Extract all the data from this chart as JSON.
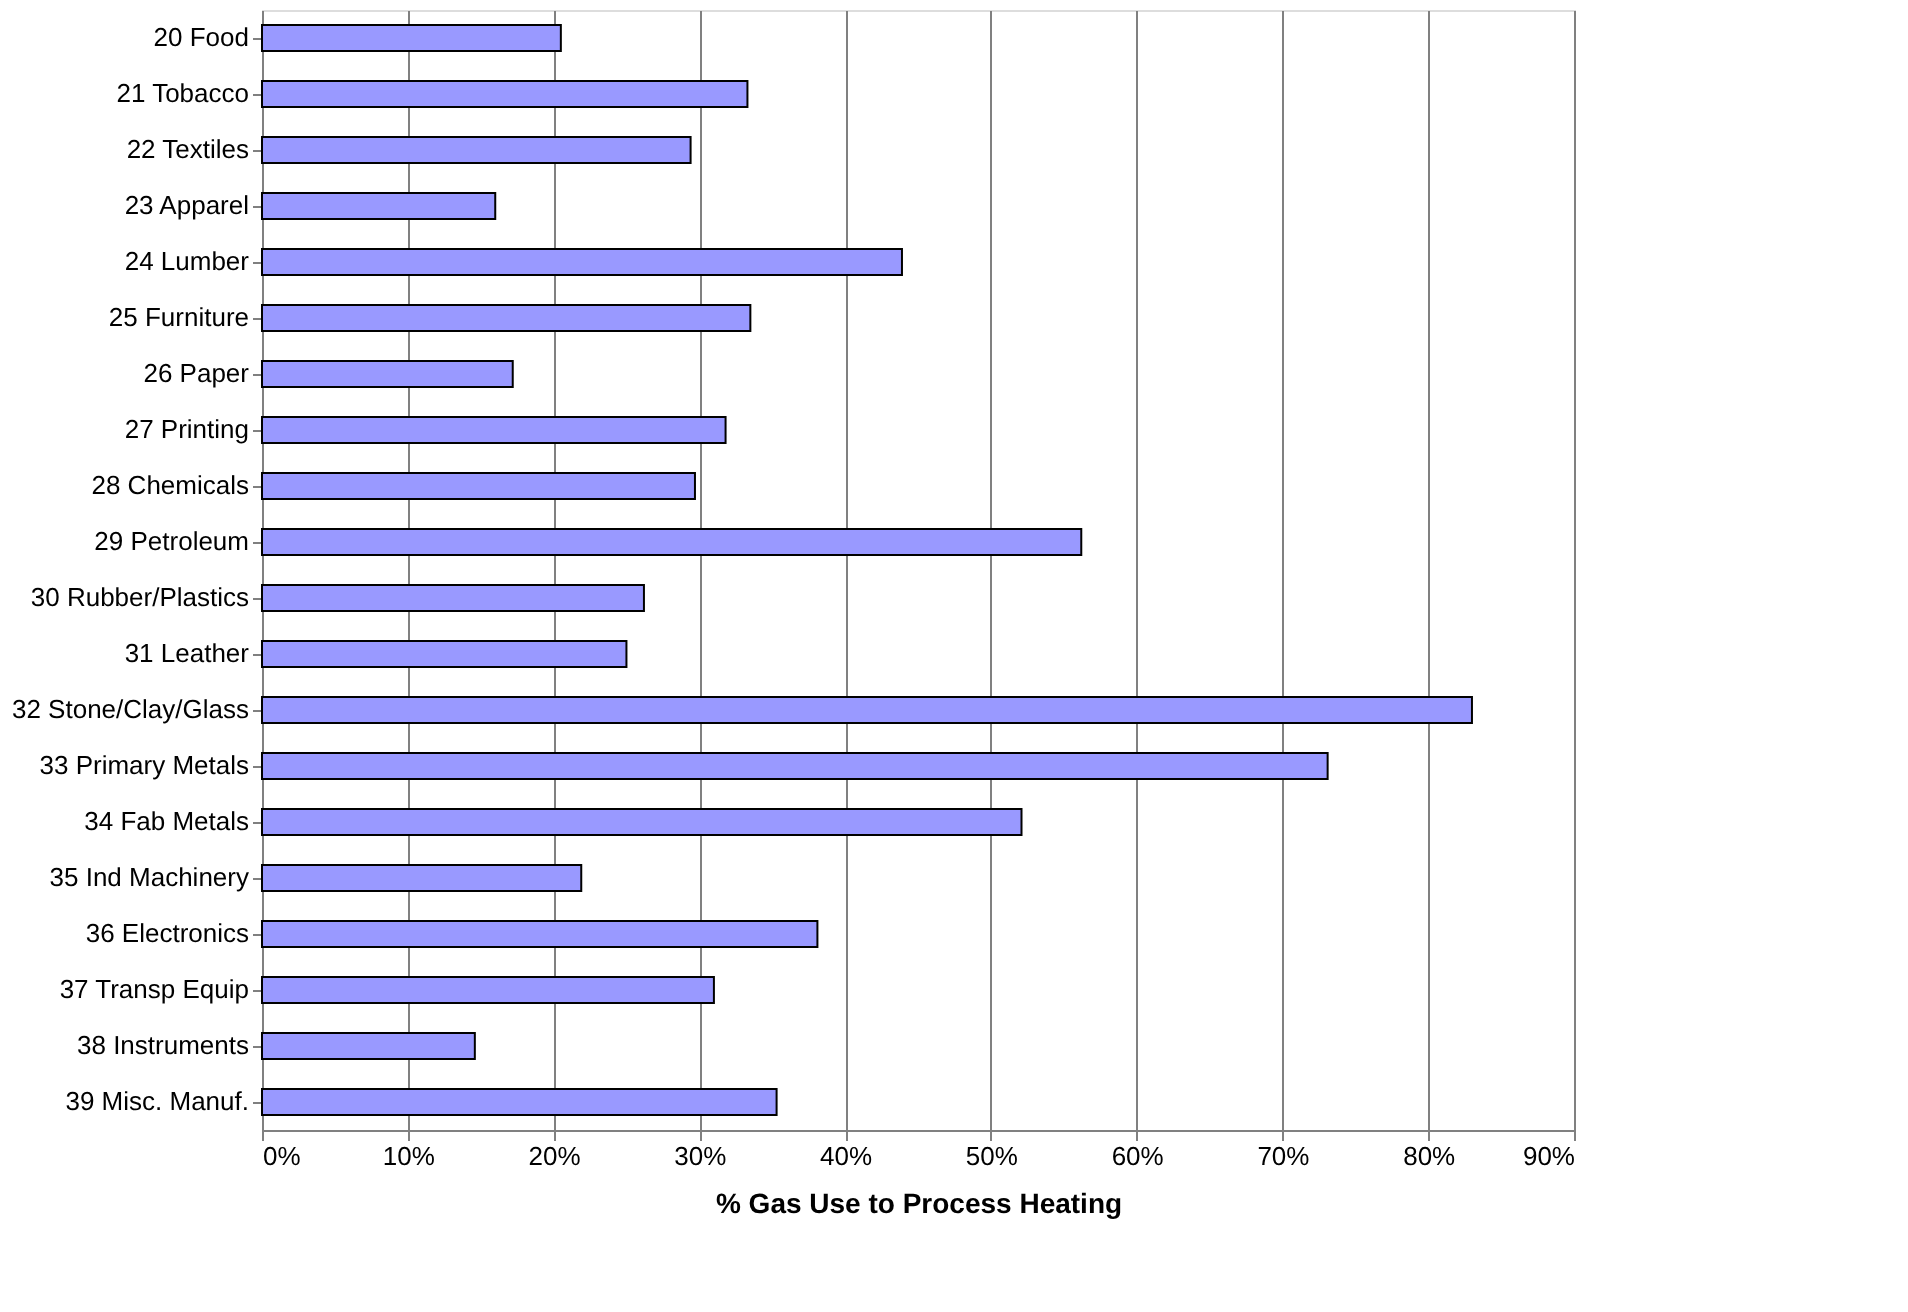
{
  "chart_data": {
    "type": "bar",
    "orientation": "horizontal",
    "xlabel": "% Gas Use to  Process Heating",
    "categories": [
      "20 Food",
      "21 Tobacco",
      "22 Textiles",
      "23 Apparel",
      "24 Lumber",
      "25 Furniture",
      "26 Paper",
      "27 Printing",
      "28 Chemicals",
      "29 Petroleum",
      "30 Rubber/Plastics",
      "31 Leather",
      "32 Stone/Clay/Glass",
      "33 Primary Metals",
      "34 Fab Metals",
      "35 Ind Machinery",
      "36 Electronics",
      "37 Transp Equip",
      "38 Instruments",
      "39 Misc. Manuf."
    ],
    "values": [
      20.5,
      33.3,
      29.4,
      16.0,
      43.9,
      33.5,
      17.2,
      31.8,
      29.7,
      56.2,
      26.2,
      25.0,
      83.0,
      73.1,
      52.1,
      21.9,
      38.1,
      31.0,
      14.6,
      35.3
    ],
    "color": "#9999ff",
    "xlim": [
      0,
      90
    ],
    "xticks": [
      {
        "value": 0,
        "label": "0%"
      },
      {
        "value": 10,
        "label": "10%"
      },
      {
        "value": 20,
        "label": "20%"
      },
      {
        "value": 30,
        "label": "30%"
      },
      {
        "value": 40,
        "label": "40%"
      },
      {
        "value": 50,
        "label": "50%"
      },
      {
        "value": 60,
        "label": "60%"
      },
      {
        "value": 70,
        "label": "70%"
      },
      {
        "value": 80,
        "label": "80%"
      },
      {
        "value": 90,
        "label": "90%"
      }
    ],
    "grid": "x"
  }
}
